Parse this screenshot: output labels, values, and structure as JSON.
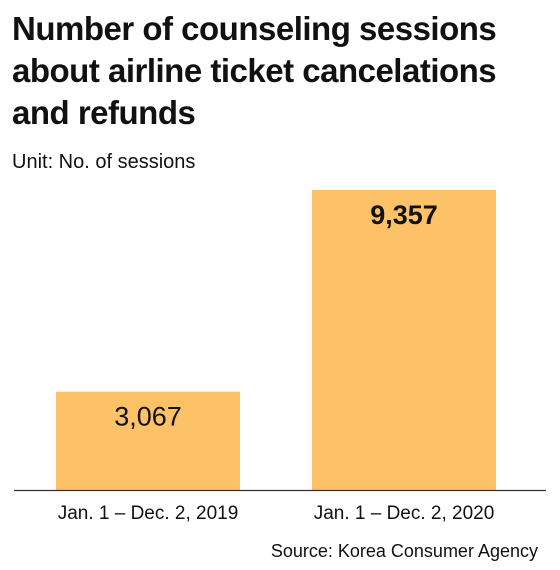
{
  "title": "Number of counseling sessions about airline ticket cancelations and refunds",
  "unit": "Unit: No. of sessions",
  "source": "Source: Korea Consumer Agency",
  "colors": {
    "bar": "#FDC167",
    "axis": "#333333"
  },
  "chart_data": {
    "type": "bar",
    "categories": [
      "Jan. 1 – Dec. 2, 2019",
      "Jan. 1 – Dec. 2, 2020"
    ],
    "values": [
      3067,
      9357
    ],
    "value_labels": [
      "3,067",
      "9,357"
    ],
    "ylim": [
      0,
      9357
    ],
    "grid": false,
    "legend": "none"
  }
}
